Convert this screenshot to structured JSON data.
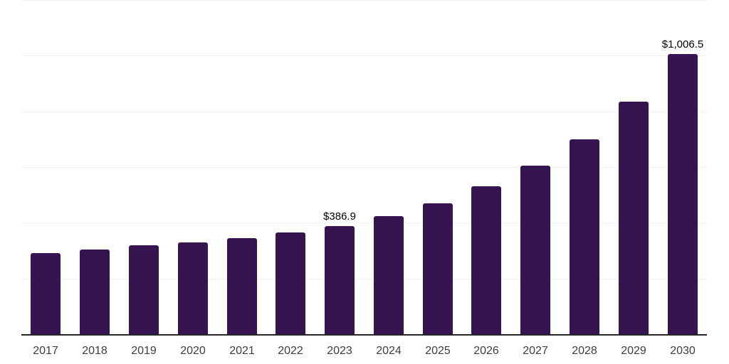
{
  "chart_data": {
    "type": "bar",
    "title": "",
    "xlabel": "",
    "ylabel": "",
    "categories": [
      "2017",
      "2018",
      "2019",
      "2020",
      "2021",
      "2022",
      "2023",
      "2024",
      "2025",
      "2026",
      "2027",
      "2028",
      "2029",
      "2030"
    ],
    "values": [
      290,
      303,
      318,
      329,
      344,
      364,
      386.9,
      423,
      471,
      530,
      606,
      700,
      835,
      1006.5
    ],
    "data_labels": [
      null,
      null,
      null,
      null,
      null,
      null,
      "$386.9",
      null,
      null,
      null,
      null,
      null,
      null,
      "$1,006.5"
    ],
    "ylim": [
      0,
      1200
    ],
    "gridline_step": 200,
    "grid": true,
    "legend": false,
    "colors": {
      "bar": "#351450",
      "axis_line": "#262626",
      "gridline": "#f2f2f2",
      "tick_label": "#3d3d3d",
      "data_label": "#000000",
      "background": "#ffffff"
    }
  }
}
